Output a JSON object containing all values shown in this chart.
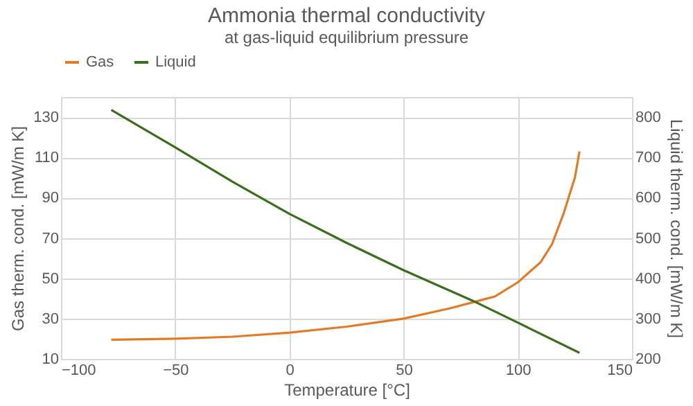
{
  "chart_data": {
    "type": "line",
    "title": "Ammonia thermal conductivity",
    "subtitle": "at gas-liquid equilibrium pressure",
    "xlabel": "Temperature [°C]",
    "ylabel": "Gas therm. cond. [mW/m K]",
    "y2label": "Liquid therm. cond. [mW/m K]",
    "xlim": [
      -100,
      150
    ],
    "xticks": [
      -100,
      -50,
      0,
      50,
      100,
      150
    ],
    "ylim": [
      10,
      140
    ],
    "yticks": [
      10,
      30,
      50,
      70,
      90,
      110,
      130
    ],
    "y2lim": [
      200,
      850
    ],
    "y2ticks": [
      200,
      300,
      400,
      500,
      600,
      700,
      800
    ],
    "grid": true,
    "legend": "top",
    "series": [
      {
        "name": "Gas",
        "color": "#e07b28",
        "x": [
          -78,
          -50,
          -25,
          0,
          25,
          50,
          70,
          80,
          90,
          100,
          110,
          115,
          120,
          125,
          127
        ],
        "values": [
          19.5,
          20,
          21,
          23,
          26,
          30,
          35,
          38,
          41,
          48,
          58,
          67,
          82,
          100,
          113
        ]
      },
      {
        "name": "Liquid",
        "color": "#3a6e1f",
        "axis": "y2",
        "x": [
          -78,
          -50,
          -25,
          0,
          25,
          50,
          80,
          100,
          127
        ],
        "values": [
          818,
          725,
          640,
          560,
          488,
          420,
          345,
          290,
          215
        ]
      }
    ]
  }
}
